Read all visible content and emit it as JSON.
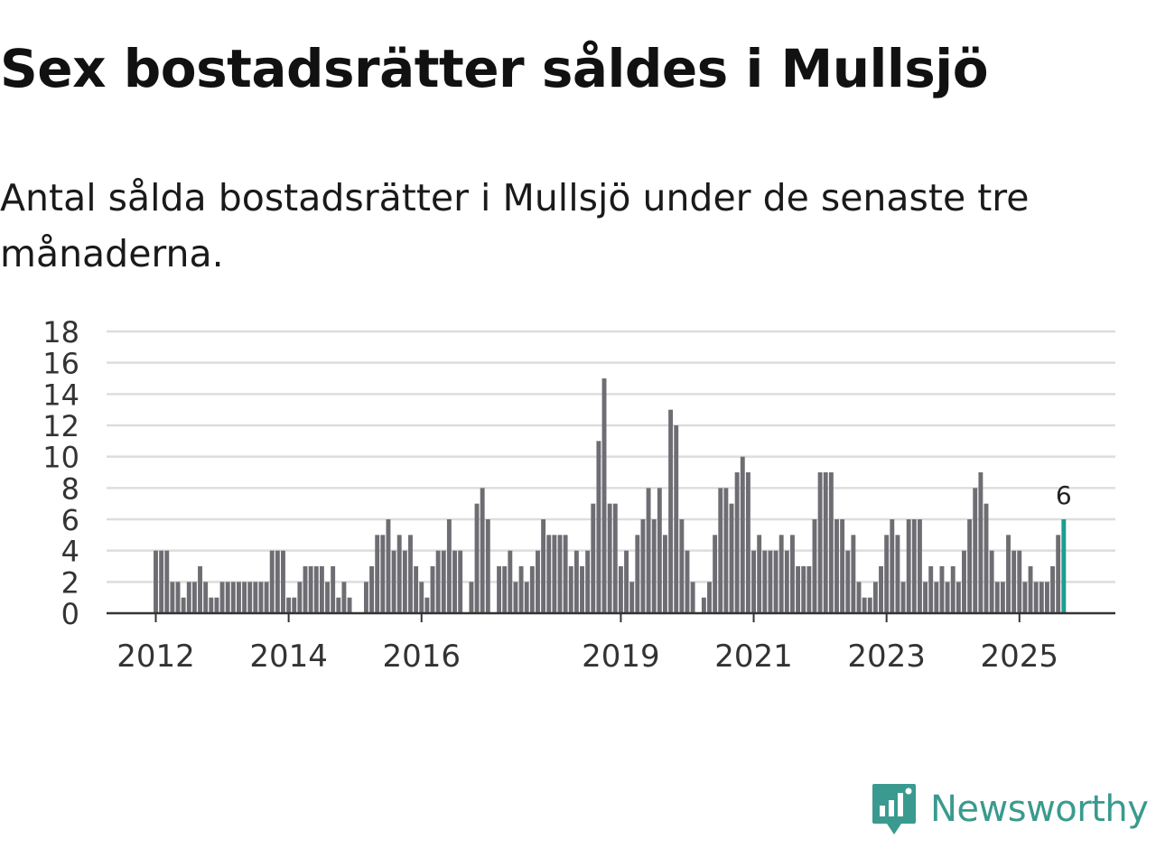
{
  "title": "Sex bostadsrätter såldes i Mullsjö",
  "subtitle": "Antal sålda bostadsrätter i Mullsjö under de senaste tre månaderna.",
  "brand": {
    "name": "Newsworthy",
    "color": "#3a9a8f"
  },
  "colors": {
    "bar": "#6e6d73",
    "highlight": "#1a9e8f",
    "grid": "#dddddd",
    "axis": "#333333"
  },
  "chart_data": {
    "type": "bar",
    "title": "Sex bostadsrätter såldes i Mullsjö",
    "xlabel": "",
    "ylabel": "",
    "ylim": [
      0,
      18
    ],
    "y_ticks": [
      "0",
      "2",
      "4",
      "6",
      "8",
      "10",
      "12",
      "14",
      "16",
      "18"
    ],
    "x_ticks": [
      {
        "label": "2012",
        "index": 0
      },
      {
        "label": "2014",
        "index": 24
      },
      {
        "label": "2016",
        "index": 48
      },
      {
        "label": "2019",
        "index": 84
      },
      {
        "label": "2021",
        "index": 108
      },
      {
        "label": "2023",
        "index": 132
      },
      {
        "label": "2025",
        "index": 156
      }
    ],
    "first_period": "2012-01",
    "values": [
      4,
      4,
      4,
      2,
      2,
      1,
      2,
      2,
      3,
      2,
      1,
      1,
      2,
      2,
      2,
      2,
      2,
      2,
      2,
      2,
      2,
      4,
      4,
      4,
      1,
      1,
      2,
      3,
      3,
      3,
      3,
      2,
      3,
      1,
      2,
      1,
      0,
      0,
      2,
      3,
      5,
      5,
      6,
      4,
      5,
      4,
      5,
      3,
      2,
      1,
      3,
      4,
      4,
      6,
      4,
      4,
      0,
      2,
      7,
      8,
      6,
      0,
      3,
      3,
      4,
      2,
      3,
      2,
      3,
      4,
      6,
      5,
      5,
      5,
      5,
      3,
      4,
      3,
      4,
      7,
      11,
      15,
      7,
      7,
      3,
      4,
      2,
      5,
      6,
      8,
      6,
      8,
      5,
      13,
      12,
      6,
      4,
      2,
      0,
      1,
      2,
      5,
      8,
      8,
      7,
      9,
      10,
      9,
      4,
      5,
      4,
      4,
      4,
      5,
      4,
      5,
      3,
      3,
      3,
      6,
      9,
      9,
      9,
      6,
      6,
      4,
      5,
      2,
      1,
      1,
      2,
      3,
      5,
      6,
      5,
      2,
      6,
      6,
      6,
      2,
      3,
      2,
      3,
      2,
      3,
      2,
      4,
      6,
      8,
      9,
      7,
      4,
      2,
      2,
      5,
      4,
      4,
      2,
      3,
      2,
      2,
      2,
      3,
      5,
      6
    ],
    "highlight_index": 164,
    "highlight_label": "6"
  }
}
